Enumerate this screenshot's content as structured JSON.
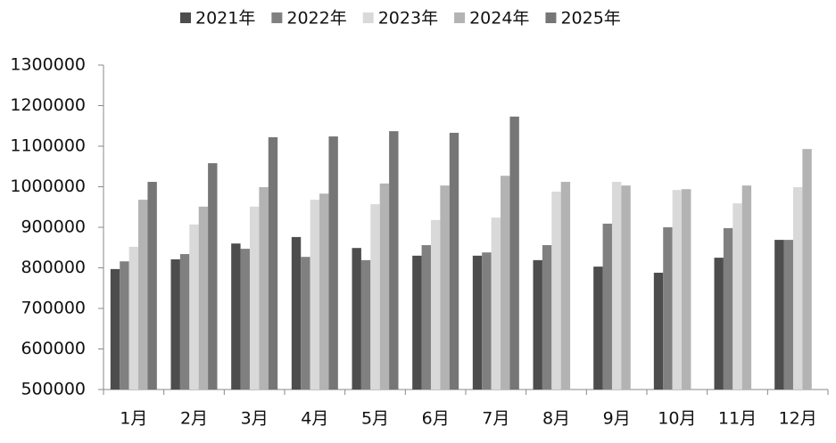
{
  "chart_data": {
    "type": "bar",
    "categories": [
      "1月",
      "2月",
      "3月",
      "4月",
      "5月",
      "6月",
      "7月",
      "8月",
      "9月",
      "10月",
      "11月",
      "12月"
    ],
    "series": [
      {
        "name": "2021年",
        "color": "#4d4d4d",
        "values": [
          797000,
          821000,
          860000,
          876000,
          849000,
          830000,
          830000,
          819000,
          803000,
          788000,
          825000,
          869000
        ]
      },
      {
        "name": "2022年",
        "color": "#808080",
        "values": [
          816000,
          834000,
          847000,
          827000,
          819000,
          856000,
          838000,
          856000,
          909000,
          900000,
          898000,
          869000
        ]
      },
      {
        "name": "2023年",
        "color": "#d9d9d9",
        "values": [
          852000,
          907000,
          951000,
          968000,
          957000,
          918000,
          924000,
          988000,
          1012000,
          992000,
          959000,
          999000
        ]
      },
      {
        "name": "2024年",
        "color": "#b3b3b3",
        "values": [
          968000,
          951000,
          999000,
          983000,
          1008000,
          1003000,
          1027000,
          1012000,
          1003000,
          994000,
          1003000,
          1093000
        ]
      },
      {
        "name": "2025年",
        "color": "#767676",
        "values": [
          1012000,
          1058000,
          1122000,
          1124000,
          1137000,
          1133000,
          1173000,
          null,
          null,
          null,
          null,
          null
        ]
      }
    ],
    "ylim": [
      500000,
      1300000
    ],
    "yticks": [
      500000,
      600000,
      700000,
      800000,
      900000,
      1000000,
      1100000,
      1200000,
      1300000
    ],
    "legend": "top"
  }
}
